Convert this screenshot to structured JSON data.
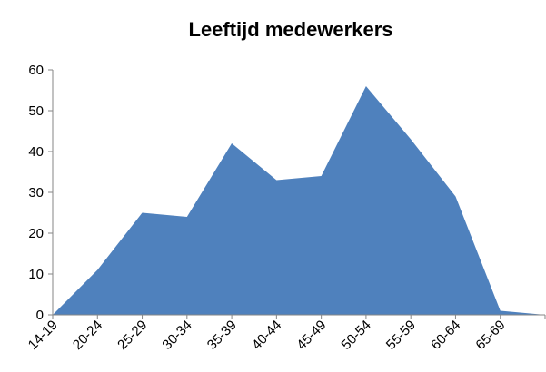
{
  "chart_data": {
    "type": "area",
    "title": "Leeftijd medewerkers",
    "categories": [
      "14-19",
      "20-24",
      "25-29",
      "30-34",
      "35-39",
      "40-44",
      "45-49",
      "50-54",
      "55-59",
      "60-64",
      "65-69",
      null
    ],
    "values": [
      0,
      11,
      25,
      24,
      42,
      33,
      34,
      56,
      43,
      29,
      1,
      0
    ],
    "color": "#4f81bd",
    "ylim": [
      0,
      60
    ],
    "yticks": [
      0,
      10,
      20,
      30,
      40,
      50,
      60
    ],
    "grid": false
  }
}
